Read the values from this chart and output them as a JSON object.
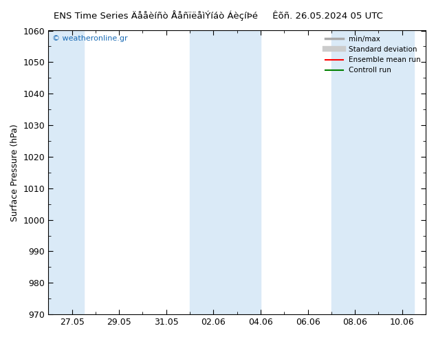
{
  "title": "ENS Time Series Äååèíñò ÅåñïëåìÝíáò ÁèçíÞé     Êõñ. 26.05.2024 05 UTC",
  "title_str": "ENS Time Series Äååèíñò ÅåñïëåìÝíáò ÁèçíÞé",
  "title_right": "Êõñ. 26.05.2024 05 UTC",
  "ylabel": "Surface Pressure (hPa)",
  "ylim": [
    970,
    1060
  ],
  "yticks": [
    970,
    980,
    990,
    1000,
    1010,
    1020,
    1030,
    1040,
    1050,
    1060
  ],
  "xtick_labels": [
    "27.05",
    "29.05",
    "31.05",
    "02.06",
    "04.06",
    "06.06",
    "08.06",
    "10.06"
  ],
  "xtick_vals": [
    0,
    2,
    4,
    6,
    8,
    10,
    12,
    14
  ],
  "xlim": [
    -1,
    15
  ],
  "background_color": "#ffffff",
  "band_color": "#daeaf7",
  "shade_ranges": [
    [
      -1,
      0.5
    ],
    [
      5,
      6.5
    ],
    [
      6.5,
      8
    ],
    [
      11,
      12.5
    ],
    [
      12.5,
      14.5
    ]
  ],
  "watermark": "© weatheronline.gr",
  "watermark_color": "#1a6bb5",
  "legend_items": [
    {
      "label": "min/max",
      "color": "#aaaaaa",
      "lw": 2.5
    },
    {
      "label": "Standard deviation",
      "color": "#cccccc",
      "lw": 6
    },
    {
      "label": "Ensemble mean run",
      "color": "#ff0000",
      "lw": 1.5
    },
    {
      "label": "Controll run",
      "color": "#008000",
      "lw": 1.5
    }
  ],
  "figsize": [
    6.34,
    4.9
  ],
  "dpi": 100
}
